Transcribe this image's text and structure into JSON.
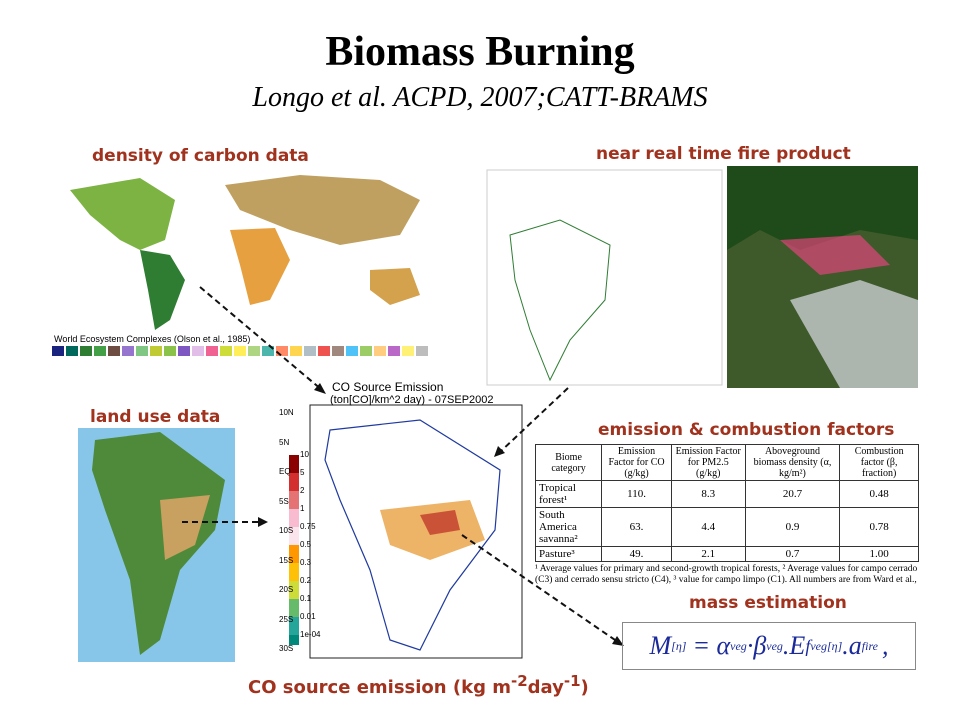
{
  "header": {
    "title": "Biomass Burning",
    "subtitle": "Longo et al. ACPD, 2007;CATT-BRAMS"
  },
  "panels": {
    "carbon": "density of carbon data",
    "carbon_caption": "World Ecosystem Complexes (Olson et al., 1985)",
    "fire": "near real time fire product",
    "land_use": "land use data",
    "emission": "emission & combustion factors",
    "mass": "mass estimation"
  },
  "co_map": {
    "title": "CO Source Emission",
    "units": "(ton[CO]/km^2 day) - 07SEP2002",
    "legend": [
      "10",
      "5",
      "2",
      "1",
      "0.75",
      "0.5",
      "0.3",
      "0.2",
      "0.1",
      "0.01",
      "1e-04"
    ],
    "lat": [
      "10N",
      "5N",
      "EQ",
      "5S",
      "10S",
      "15S",
      "20S",
      "25S",
      "30S"
    ],
    "caption": "CO source emission (kg m",
    "caption_sup1": "-2",
    "caption_mid": "day",
    "caption_sup2": "-1",
    "caption_end": ")"
  },
  "table": {
    "header": [
      "Biome category",
      "Emission Factor for CO (g/kg)",
      "Emission Factor for PM2.5 (g/kg)",
      "Aboveground biomass density (α, kg/m²)",
      "Combustion factor (β, fraction)"
    ],
    "rows": [
      [
        "Tropical forest¹",
        "110.",
        "8.3",
        "20.7",
        "0.48"
      ],
      [
        "South America savanna²",
        "63.",
        "4.4",
        "0.9",
        "0.78"
      ],
      [
        "Pasture³",
        "49.",
        "2.1",
        "0.7",
        "1.00"
      ]
    ],
    "footnote": "¹ Average values for primary and second-growth tropical forests, ² Average values for campo cerrado (C3) and cerrado sensu stricto (C4), ³ value for campo limpo (C1). All numbers are from Ward et al.,"
  },
  "formula": {
    "m": "M",
    "m_sub": "[η]",
    "eq": "= α",
    "a_sub": "veg",
    "b": "·β",
    "b_sub": "veg",
    "e": ".E",
    "f": "f",
    "f_sub": "veg",
    "f_sup": "[η]",
    "a2": ".a",
    "a2_sub": "fire",
    "end": ","
  }
}
